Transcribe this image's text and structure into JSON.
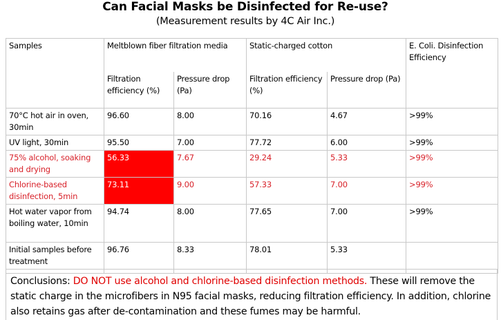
{
  "title": "Can Facial Masks be Disinfected for Re-use?",
  "subtitle": "(Measurement results by 4C Air Inc.)",
  "table": {
    "headers": {
      "samples": "Samples",
      "meltblown": "Meltblown fiber filtration media",
      "cotton": "Static-charged cotton",
      "ecoli": "E. Coli. Disinfection Efficiency",
      "filtration": "Filtration efficiency (%)",
      "pressure": "Pressure drop (Pa)"
    },
    "rows": [
      {
        "sample": "70°C hot air in oven, 30min",
        "m_eff": "96.60",
        "m_pd": "8.00",
        "c_eff": "70.16",
        "c_pd": "4.67",
        "ecoli": ">99%"
      },
      {
        "sample": "UV light, 30min",
        "m_eff": "95.50",
        "m_pd": "7.00",
        "c_eff": "77.72",
        "c_pd": "6.00",
        "ecoli": ">99%"
      },
      {
        "sample": "75% alcohol, soaking and drying",
        "m_eff": "56.33",
        "m_pd": "7.67",
        "c_eff": "29.24",
        "c_pd": "5.33",
        "ecoli": ">99%"
      },
      {
        "sample": "Chlorine-based disinfection, 5min",
        "m_eff": "73.11",
        "m_pd": "9.00",
        "c_eff": "57.33",
        "c_pd": "7.00",
        "ecoli": ">99%"
      },
      {
        "sample": "Hot water vapor from boiling water, 10min",
        "m_eff": "94.74",
        "m_pd": "8.00",
        "c_eff": "77.65",
        "c_pd": "7.00",
        "ecoli": ">99%"
      },
      {
        "sample": "Initial samples before treatment",
        "m_eff": "96.76",
        "m_pd": "8.33",
        "c_eff": "78.01",
        "c_pd": "5.33",
        "ecoli": ""
      }
    ]
  },
  "conclusion": {
    "lead": "Conclusions: ",
    "warning": "DO NOT use alcohol and chlorine-based disinfection methods.",
    "rest": " These will remove the static charge in the microfibers in N95 facial masks, reducing filtration efficiency. In addition, chlorine also retains gas after de-contamination and these fumes may be harmful."
  },
  "colors": {
    "warning_text": "#d8222a",
    "highlight_fill": "#ff0000"
  }
}
